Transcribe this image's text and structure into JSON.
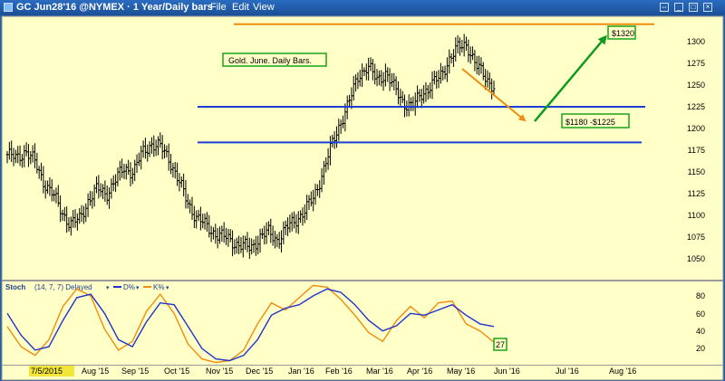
{
  "window": {
    "title": "GC Jun28'16 @NYMEX · 1 Year/Daily bars",
    "menu": [
      "File",
      "Edit",
      "View"
    ],
    "icon_names": [
      "chart-window-icon",
      "restore-icon",
      "minimize-icon",
      "maximize-icon",
      "close-icon"
    ]
  },
  "colors": {
    "background": "#ffffc8",
    "bars": "#000000",
    "support_lines": "#1e3fd6",
    "target_line": "#f08c10",
    "up_arrow": "#0f9a20",
    "stoch_d": "#2233cc",
    "stoch_k": "#f08c10",
    "label_border": "#1aa31a"
  },
  "annotations": {
    "note": "Gold. June. Daily Bars.",
    "target_label": "$1320",
    "range_label": "$1180 -$1225",
    "stoch_value_label": "27"
  },
  "stoch_panel": {
    "label": "Stoch",
    "params": "(14, 7, 7) Delayed",
    "d_label": "D%",
    "k_label": "K%",
    "yticks": [
      "80",
      "60",
      "40",
      "20"
    ]
  },
  "x_axis": {
    "labels": [
      "7/5/2015",
      "Aug '15",
      "Sep '15",
      "Oct '15",
      "Nov '15",
      "Dec '15",
      "Jan '16",
      "Feb '16",
      "Mar '16",
      "Apr '16",
      "May '16",
      "Jun '16",
      "Jul '16",
      "Aug '16"
    ]
  },
  "chart_data": [
    {
      "type": "ohlc",
      "ylim": [
        1030,
        1325
      ],
      "yticks": [
        1050,
        1075,
        1100,
        1125,
        1150,
        1175,
        1200,
        1225,
        1250,
        1275,
        1300
      ],
      "x_categories": [
        "7/5/2015",
        "Aug '15",
        "Sep '15",
        "Oct '15",
        "Nov '15",
        "Dec '15",
        "Jan '16",
        "Feb '16",
        "Mar '16",
        "Apr '16",
        "May '16",
        "Jun '16",
        "Jul '16",
        "Aug '16"
      ],
      "close_anchors": [
        1170,
        1165,
        1175,
        1162,
        1140,
        1125,
        1105,
        1090,
        1095,
        1118,
        1130,
        1125,
        1140,
        1155,
        1150,
        1172,
        1183,
        1178,
        1165,
        1140,
        1115,
        1098,
        1088,
        1080,
        1075,
        1070,
        1065,
        1062,
        1075,
        1080,
        1072,
        1085,
        1095,
        1105,
        1120,
        1150,
        1180,
        1208,
        1232,
        1262,
        1272,
        1255,
        1265,
        1245,
        1230,
        1225,
        1240,
        1250,
        1258,
        1280,
        1292,
        1298,
        1272,
        1260,
        1248
      ],
      "support_lines": [
        1225,
        1184
      ],
      "target_line": 1320
    },
    {
      "type": "line",
      "ylim": [
        0,
        100
      ],
      "series": [
        {
          "name": "D%",
          "values": [
            60,
            35,
            18,
            22,
            52,
            78,
            82,
            60,
            30,
            22,
            50,
            72,
            70,
            45,
            20,
            8,
            6,
            12,
            30,
            58,
            66,
            70,
            80,
            88,
            84,
            70,
            52,
            40,
            46,
            60,
            58,
            64,
            70,
            58,
            48,
            45
          ]
        },
        {
          "name": "K%",
          "values": [
            45,
            22,
            12,
            30,
            68,
            88,
            80,
            42,
            18,
            28,
            62,
            82,
            60,
            25,
            8,
            4,
            6,
            18,
            48,
            72,
            64,
            78,
            92,
            90,
            76,
            58,
            38,
            28,
            52,
            68,
            55,
            72,
            74,
            48,
            40,
            27
          ]
        }
      ]
    }
  ]
}
